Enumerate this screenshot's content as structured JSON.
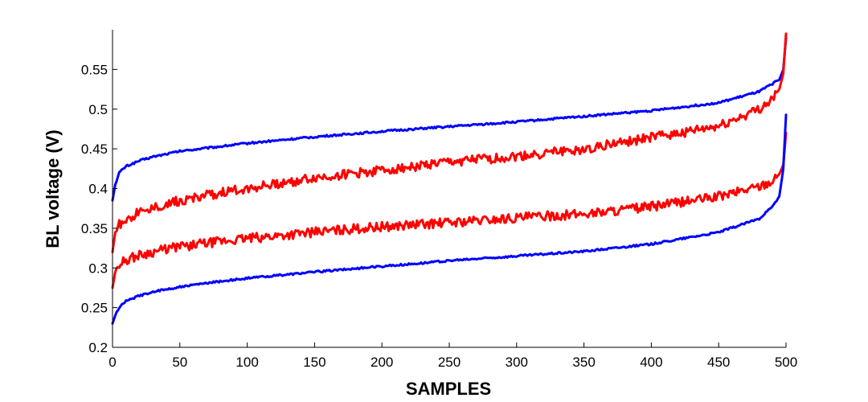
{
  "chart_data": {
    "type": "line",
    "title": "",
    "xlabel": "SAMPLES",
    "ylabel": "BL voltage (V)",
    "xlim": [
      0,
      500
    ],
    "ylim": [
      0.2,
      0.6
    ],
    "x_ticks": [
      "0",
      "50",
      "100",
      "150",
      "200",
      "250",
      "300",
      "350",
      "400",
      "450",
      "500"
    ],
    "y_ticks": [
      "0.2",
      "0.25",
      "0.3",
      "0.35",
      "0.4",
      "0.45",
      "0.5",
      "0.55"
    ],
    "grid": false,
    "legend": "none",
    "series": [
      {
        "color": "#0000ff",
        "x": [
          0,
          2,
          5,
          10,
          20,
          30,
          50,
          75,
          100,
          150,
          200,
          250,
          300,
          350,
          400,
          450,
          480,
          490,
          495,
          498,
          500
        ],
        "y": [
          0.385,
          0.405,
          0.42,
          0.428,
          0.435,
          0.44,
          0.447,
          0.452,
          0.457,
          0.465,
          0.472,
          0.478,
          0.484,
          0.491,
          0.498,
          0.508,
          0.522,
          0.532,
          0.537,
          0.55,
          0.59
        ]
      },
      {
        "color": "#ff0000",
        "x": [
          0,
          2,
          5,
          10,
          20,
          30,
          50,
          75,
          100,
          150,
          200,
          250,
          300,
          350,
          400,
          450,
          480,
          490,
          495,
          498,
          500
        ],
        "y": [
          0.32,
          0.345,
          0.355,
          0.362,
          0.37,
          0.376,
          0.385,
          0.393,
          0.4,
          0.413,
          0.423,
          0.433,
          0.44,
          0.45,
          0.464,
          0.478,
          0.5,
          0.513,
          0.525,
          0.545,
          0.595
        ]
      },
      {
        "color": "#ff0000",
        "x": [
          0,
          2,
          5,
          10,
          20,
          30,
          50,
          75,
          100,
          150,
          200,
          250,
          300,
          350,
          400,
          450,
          480,
          490,
          495,
          498,
          500
        ],
        "y": [
          0.275,
          0.295,
          0.305,
          0.31,
          0.316,
          0.32,
          0.327,
          0.332,
          0.337,
          0.345,
          0.352,
          0.357,
          0.363,
          0.368,
          0.377,
          0.39,
          0.403,
          0.41,
          0.418,
          0.43,
          0.47
        ]
      },
      {
        "color": "#0000ff",
        "x": [
          0,
          2,
          5,
          10,
          20,
          30,
          50,
          75,
          100,
          150,
          200,
          250,
          300,
          350,
          400,
          450,
          480,
          490,
          495,
          498,
          500
        ],
        "y": [
          0.23,
          0.24,
          0.25,
          0.258,
          0.265,
          0.27,
          0.276,
          0.282,
          0.287,
          0.295,
          0.302,
          0.309,
          0.315,
          0.321,
          0.33,
          0.345,
          0.362,
          0.377,
          0.39,
          0.425,
          0.493
        ]
      }
    ]
  }
}
